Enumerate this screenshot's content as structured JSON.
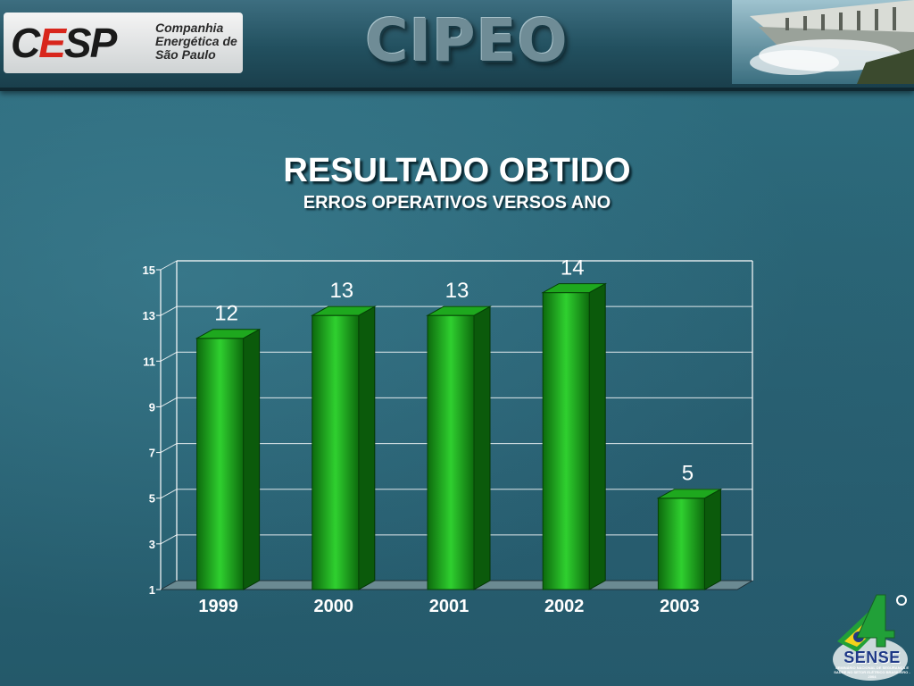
{
  "header": {
    "logo_mark_pre": "C",
    "logo_mark_e": "E",
    "logo_mark_post": "SP",
    "company_line1": "Companhia",
    "company_line2": "Energética de",
    "company_line3": "São Paulo",
    "brand": "CIPEO"
  },
  "slide": {
    "title": "RESULTADO OBTIDO",
    "subtitle": "ERROS OPERATIVOS VERSOS ANO"
  },
  "footer_logo": {
    "number": "4º",
    "name": "SENSE",
    "tagline": "SEMINÁRIO NACIONAL DE SEGURANÇA E SAÚDE NO SETOR ELÉTRICO BRASILEIRO - 2004"
  },
  "chart_data": {
    "type": "bar",
    "title": "",
    "xlabel": "",
    "ylabel": "",
    "categories": [
      "1999",
      "2000",
      "2001",
      "2002",
      "2003"
    ],
    "values": [
      12,
      13,
      13,
      14,
      5
    ],
    "data_labels": [
      "12",
      "13",
      "13",
      "14",
      "5"
    ],
    "ylim": [
      1,
      15
    ],
    "yticks": [
      1,
      3,
      5,
      7,
      9,
      11,
      13,
      15
    ],
    "grid": true,
    "legend": "none",
    "style": "3d-column",
    "colors": {
      "bar": "#1ea81e",
      "bar_dark": "#0b5a0b",
      "grid": "#ffffff",
      "floor": "#6b8a92"
    }
  }
}
